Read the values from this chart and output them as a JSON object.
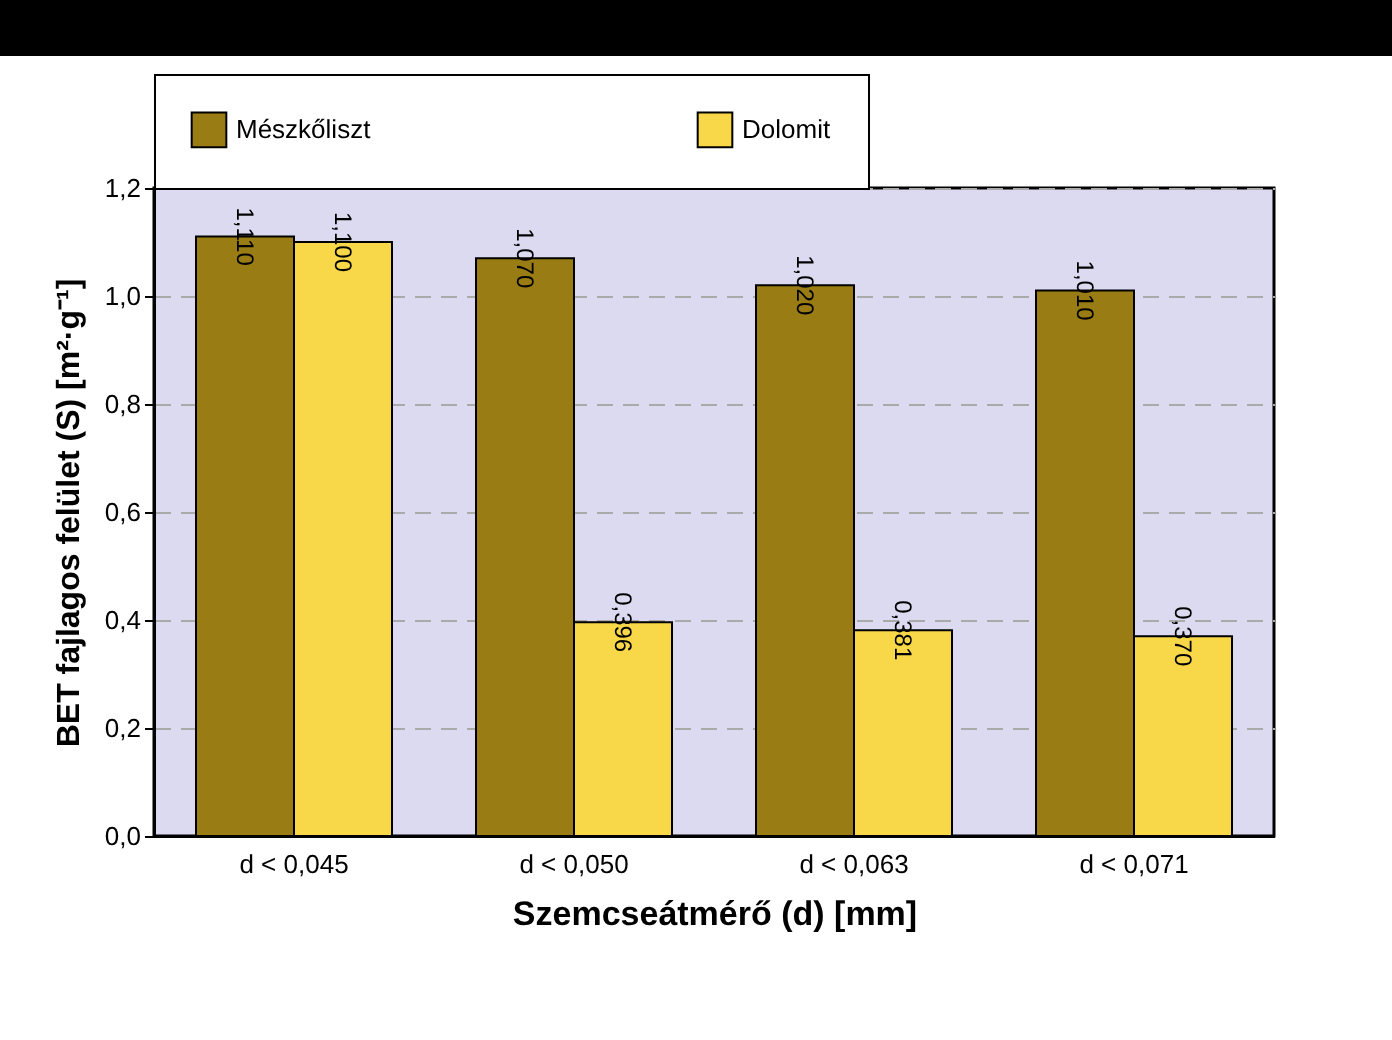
{
  "chart_data": {
    "type": "bar",
    "xlabel": "Szemcseátmérő (d) [mm]",
    "ylabel": "BET fajlagos felület (S) [m²·g⁻¹]",
    "categories": [
      "d < 0,045",
      "d < 0,050",
      "d < 0,063",
      "d < 0,071"
    ],
    "series": [
      {
        "name": "Mészkőliszt",
        "color": "#9a7c14",
        "values": [
          1.11,
          1.07,
          1.02,
          1.01
        ],
        "value_labels": [
          "1,110",
          "1,070",
          "1,020",
          "1,010"
        ]
      },
      {
        "name": "Dolomit",
        "color": "#f8d848",
        "values": [
          1.1,
          0.396,
          0.381,
          0.37
        ],
        "value_labels": [
          "1,100",
          "0,396",
          "0,381",
          "0,370"
        ]
      }
    ],
    "ylim": [
      0,
      1.2
    ],
    "yticks": [
      {
        "value": 0,
        "label": "0,0"
      },
      {
        "value": 0.2,
        "label": "0,2"
      },
      {
        "value": 0.4,
        "label": "0,4"
      },
      {
        "value": 0.6,
        "label": "0,6"
      },
      {
        "value": 0.8,
        "label": "0,8"
      },
      {
        "value": 1.0,
        "label": "1,0"
      },
      {
        "value": 1.2,
        "label": "1,2"
      }
    ],
    "grid": "y",
    "legend": "top"
  }
}
